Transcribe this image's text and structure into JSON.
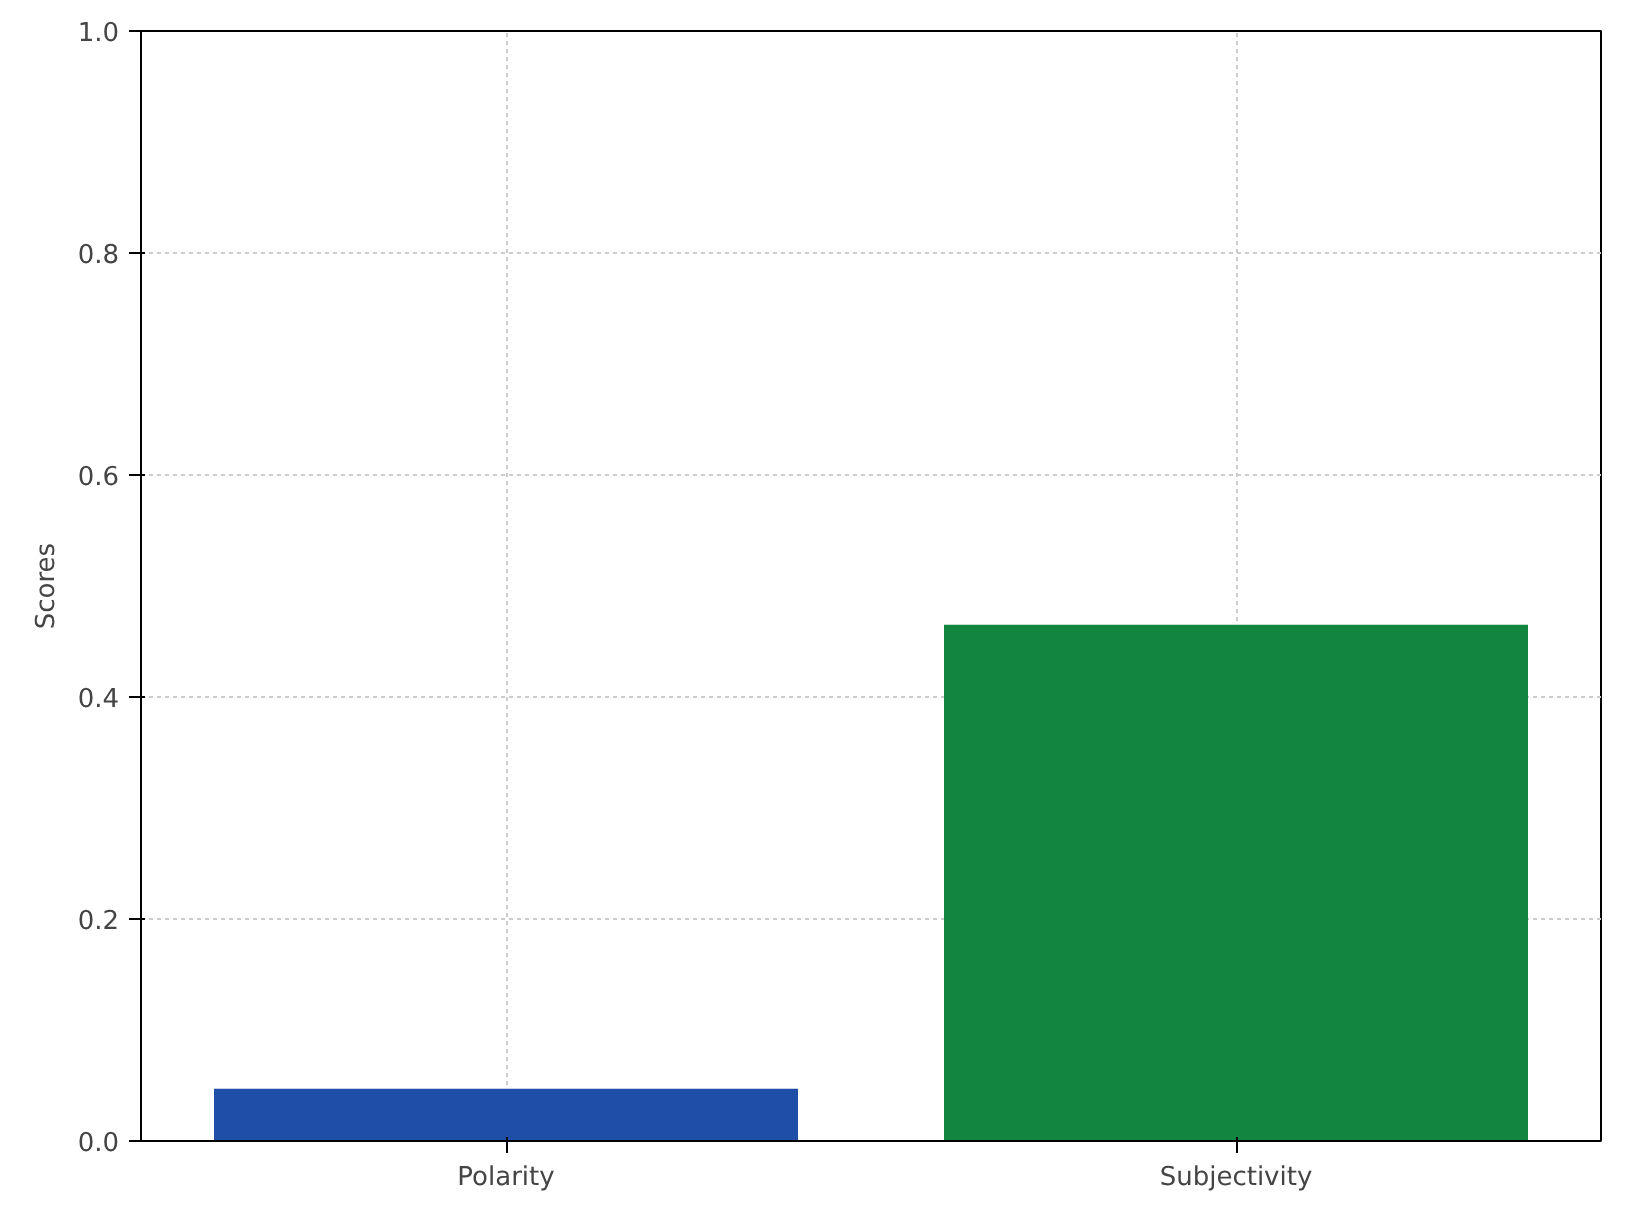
{
  "chart_data": {
    "type": "bar",
    "ylabel": "Scores",
    "categories": [
      "Polarity",
      "Subjectivity"
    ],
    "values": [
      0.047,
      0.465
    ],
    "colors": [
      "#1f4ea8",
      "#128540"
    ],
    "ylim": [
      0,
      1.0
    ],
    "yticks": [
      {
        "value": 0,
        "label": "0.0"
      },
      0.2,
      0.4,
      0.6,
      0.8,
      {
        "value": 1,
        "label": "1.0"
      }
    ],
    "grid": true
  }
}
